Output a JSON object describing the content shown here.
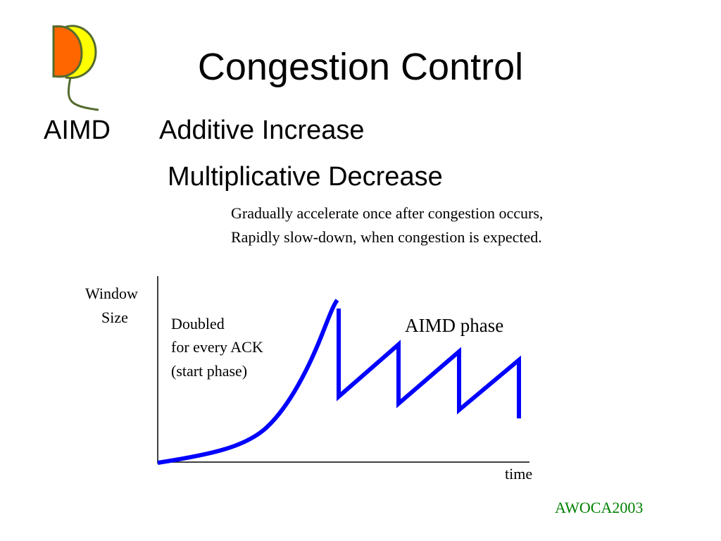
{
  "slide": {
    "title": "Congestion Control",
    "acronym": "AIMD",
    "expansion_line1": "Additive Increase",
    "expansion_line2": "Multiplicative Decrease",
    "description_line1": "Gradually accelerate once after congestion occurs,",
    "description_line2": "Rapidly slow-down, when congestion is expected.",
    "footer": "AWOCA2003"
  },
  "logo": {
    "colors": {
      "left_petal": "#ff6600",
      "right_petal": "#ffff00",
      "outline": "#556b2f"
    }
  },
  "diagram": {
    "y_label_line1": "Window",
    "y_label_line2": "Size",
    "x_label": "time",
    "start_note_line1": "Doubled",
    "start_note_line2": "for every ACK",
    "start_note_line3": "(start phase)",
    "phase_label": "AIMD phase",
    "line_color": "#0000ff",
    "axis_color": "#000000"
  }
}
